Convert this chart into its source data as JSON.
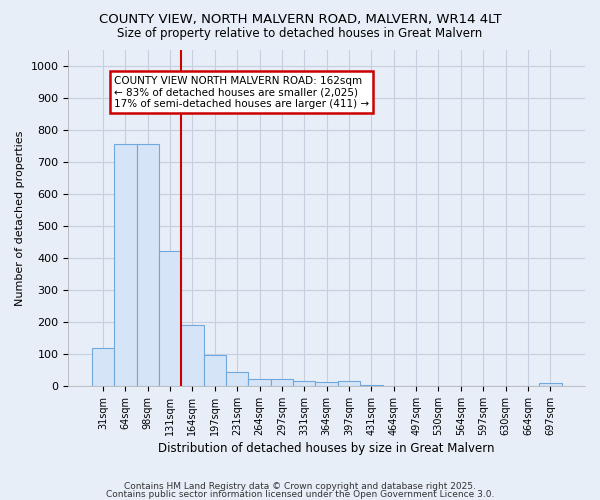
{
  "title1": "COUNTY VIEW, NORTH MALVERN ROAD, MALVERN, WR14 4LT",
  "title2": "Size of property relative to detached houses in Great Malvern",
  "xlabel": "Distribution of detached houses by size in Great Malvern",
  "ylabel": "Number of detached properties",
  "categories": [
    "31sqm",
    "64sqm",
    "98sqm",
    "131sqm",
    "164sqm",
    "197sqm",
    "231sqm",
    "264sqm",
    "297sqm",
    "331sqm",
    "364sqm",
    "397sqm",
    "431sqm",
    "464sqm",
    "497sqm",
    "530sqm",
    "564sqm",
    "597sqm",
    "630sqm",
    "664sqm",
    "697sqm"
  ],
  "values": [
    120,
    757,
    757,
    422,
    190,
    97,
    45,
    22,
    22,
    15,
    13,
    15,
    2,
    1,
    1,
    0,
    0,
    0,
    0,
    0,
    8
  ],
  "bar_color": "#d6e4f7",
  "bar_edge_color": "#6fa8dc",
  "vline_color": "#cc0000",
  "vline_x_index": 4,
  "annotation_line1": "COUNTY VIEW NORTH MALVERN ROAD: 162sqm",
  "annotation_line2": "← 83% of detached houses are smaller (2,025)",
  "annotation_line3": "17% of semi-detached houses are larger (411) →",
  "annotation_box_color": "#ffffff",
  "annotation_border_color": "#cc0000",
  "ylim": [
    0,
    1050
  ],
  "yticks": [
    0,
    100,
    200,
    300,
    400,
    500,
    600,
    700,
    800,
    900,
    1000
  ],
  "footer1": "Contains HM Land Registry data © Crown copyright and database right 2025.",
  "footer2": "Contains public sector information licensed under the Open Government Licence 3.0.",
  "bg_color": "#e8eef7",
  "plot_bg_color": "#e8eef7",
  "grid_color": "#c5cfe0",
  "title_fontsize": 9.5,
  "subtitle_fontsize": 8.5
}
